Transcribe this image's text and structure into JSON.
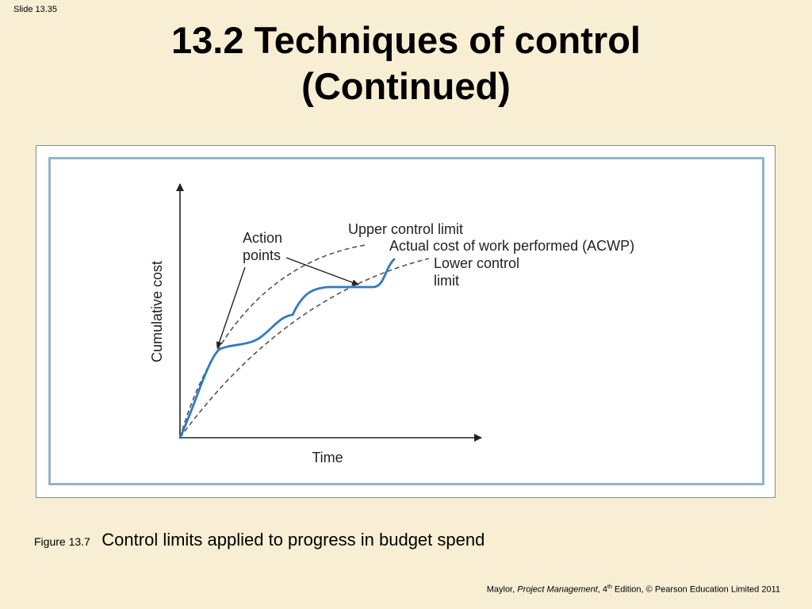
{
  "slide_number": "Slide 13.35",
  "title": {
    "line1": "13.2 Techniques of control",
    "line2": "(Continued)"
  },
  "diagram": {
    "y_axis_label": "Cumulative cost",
    "x_axis_label": "Time",
    "label_action_line1": "Action",
    "label_action_line2": "points",
    "label_upper": "Upper control limit",
    "label_acwp": "Actual cost of work performed (ACWP)",
    "label_lower_line1": "Lower control",
    "label_lower_line2": "limit",
    "colors": {
      "acwp_curve": "#2f7ac0",
      "limit_curves": "#555555",
      "axes": "#222222"
    }
  },
  "caption": {
    "figure_label": "Figure 13.7",
    "text": "Control limits applied to progress in budget spend"
  },
  "footer": {
    "author": "Maylor,",
    "book": "Project Management",
    "edition_num": "4",
    "edition_sup": "th",
    "rest": "Edition, © Pearson Education Limited 2011"
  }
}
